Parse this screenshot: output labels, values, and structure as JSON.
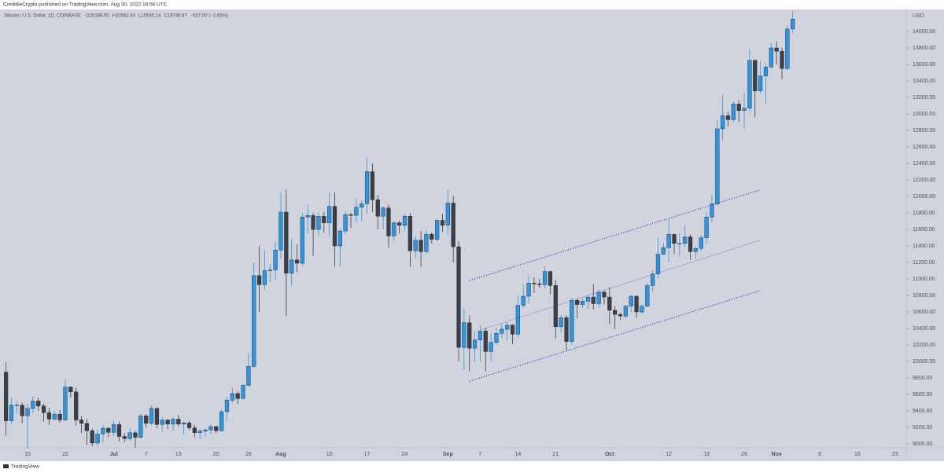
{
  "header": {
    "publisher": "CredibleCrypto published on TradingView.com, Aug 30, 2022 18:56 UTC"
  },
  "footer": {
    "brand": "TradingView"
  },
  "chart_data": {
    "type": "candlestick",
    "symbol": "Bitcoin / U.S. Dollar, 1D, COINBASE",
    "ohlc_legend": [
      "O20286.95",
      "H20582.64",
      "L19540.14",
      "C19749.97",
      "−537.00 (−2.65%)"
    ],
    "y_unit": "USD",
    "up_color": "#2f95e0",
    "down_color": "#3b3f4a",
    "line_color": "#2a4fc9",
    "grid": false,
    "ylim": [
      8952,
      14267
    ],
    "yticks": [
      {
        "value": 9000,
        "label": "9000.00"
      },
      {
        "value": 9200,
        "label": "9200.00"
      },
      {
        "value": 9400,
        "label": "9400.00"
      },
      {
        "value": 9600,
        "label": "9600.00"
      },
      {
        "value": 9800,
        "label": "9800.00"
      },
      {
        "value": 10000,
        "label": "10000.00"
      },
      {
        "value": 10200,
        "label": "10200.00"
      },
      {
        "value": 10400,
        "label": "10400.00"
      },
      {
        "value": 10600,
        "label": "10600.00"
      },
      {
        "value": 10800,
        "label": "10800.00"
      },
      {
        "value": 11000,
        "label": "11000.00"
      },
      {
        "value": 11200,
        "label": "11200.00"
      },
      {
        "value": 11400,
        "label": "11400.00"
      },
      {
        "value": 11600,
        "label": "11600.00"
      },
      {
        "value": 11800,
        "label": "11800.00"
      },
      {
        "value": 12000,
        "label": "12000.00"
      },
      {
        "value": 12200,
        "label": "12200.00"
      },
      {
        "value": 12400,
        "label": "12400.00"
      },
      {
        "value": 12600,
        "label": "12600.00"
      },
      {
        "value": 12800,
        "label": "12800.00"
      },
      {
        "value": 13000,
        "label": "13000.00"
      },
      {
        "value": 13200,
        "label": "13200.00"
      },
      {
        "value": 13400,
        "label": "13400.00"
      },
      {
        "value": 13600,
        "label": "13600.00"
      },
      {
        "value": 13800,
        "label": "13800.00"
      },
      {
        "value": 14000,
        "label": "14000.00"
      }
    ],
    "categories": [
      null,
      null,
      null,
      null,
      "15",
      null,
      null,
      null,
      null,
      null,
      null,
      "22",
      null,
      null,
      null,
      null,
      null,
      null,
      null,
      null,
      "Jul",
      null,
      null,
      null,
      null,
      null,
      "7",
      null,
      null,
      null,
      null,
      null,
      "13",
      null,
      null,
      null,
      null,
      null,
      null,
      "20",
      null,
      null,
      null,
      null,
      null,
      "26",
      null,
      null,
      null,
      null,
      null,
      "Aug",
      null,
      null,
      null,
      null,
      null,
      null,
      null,
      null,
      "10",
      null,
      null,
      null,
      null,
      null,
      null,
      "17",
      null,
      null,
      null,
      null,
      null,
      null,
      "24",
      null,
      null,
      null,
      null,
      null,
      null,
      null,
      "Sep",
      null,
      null,
      null,
      null,
      null,
      "7",
      null,
      null,
      null,
      null,
      null,
      null,
      "14",
      null,
      null,
      null,
      null,
      null,
      null,
      "21",
      null,
      null,
      null,
      null,
      null,
      null,
      null,
      null,
      null,
      "Oct",
      null,
      null,
      null,
      null,
      null,
      null,
      null,
      null,
      null,
      null,
      "12",
      null,
      null,
      null,
      null,
      null,
      null,
      "19",
      null,
      null,
      null,
      null,
      null,
      null,
      "26",
      null,
      null,
      null,
      null,
      null,
      "Nov",
      null,
      null,
      null,
      null,
      null,
      null,
      null,
      "9",
      null,
      null,
      null,
      null,
      null,
      null,
      "16",
      null,
      null,
      null,
      null,
      null,
      null,
      "23",
      null,
      null
    ],
    "open": [
      9870,
      9280,
      9470,
      9470,
      9340,
      9430,
      9520,
      9460,
      9380,
      9300,
      9360,
      9290,
      9690,
      9630,
      9290,
      9250,
      9160,
      9010,
      9120,
      9190,
      9140,
      9235,
      9090,
      9065,
      9135,
      9080,
      9340,
      9250,
      9430,
      9235,
      9290,
      9240,
      9300,
      9240,
      9255,
      9195,
      9135,
      9155,
      9170,
      9210,
      9160,
      9390,
      9530,
      9610,
      9550,
      9710,
      9940,
      11040,
      10930,
      11100,
      11110,
      11350,
      11810,
      11070,
      11230,
      11190,
      11750,
      11770,
      11600,
      11760,
      11680,
      11880,
      11400,
      11580,
      11780,
      11770,
      11870,
      11910,
      12300,
      11960,
      11760,
      11860,
      11520,
      11680,
      11650,
      11760,
      11340,
      11470,
      11330,
      11540,
      11480,
      11710,
      11650,
      11920,
      11390,
      10170,
      10470,
      10160,
      10260,
      10370,
      10120,
      10230,
      10340,
      10390,
      10440,
      10330,
      10680,
      10790,
      10950,
      10940,
      10930,
      11090,
      10920,
      10420,
      10530,
      10240,
      10740,
      10690,
      10730,
      10780,
      10700,
      10840,
      10780,
      10620,
      10570,
      10550,
      10670,
      10790,
      10600,
      10670,
      10920,
      11060,
      11300,
      11380,
      11540,
      11430,
      11430,
      11510,
      11330,
      11370,
      11500,
      11750,
      11910,
      12820,
      12980,
      12930,
      13120,
      13040,
      13070,
      13650,
      13280,
      13460,
      13570,
      13800,
      13760,
      13550,
      14030,
      null,
      null,
      null,
      null,
      null,
      null,
      null,
      null,
      null,
      null,
      null,
      null,
      null,
      null,
      null,
      null,
      null,
      null,
      null,
      null,
      null
    ],
    "high": [
      9990,
      9560,
      9520,
      9500,
      9490,
      9580,
      9560,
      9490,
      9440,
      9400,
      9410,
      9780,
      9700,
      9680,
      9340,
      9300,
      9190,
      9180,
      9230,
      9200,
      9290,
      9270,
      9130,
      9190,
      9160,
      9370,
      9360,
      9470,
      9440,
      9320,
      9300,
      9330,
      9350,
      9280,
      9280,
      9230,
      9190,
      9190,
      9240,
      9220,
      9420,
      9570,
      9680,
      9640,
      9730,
      10100,
      11200,
      11400,
      11350,
      11180,
      11450,
      12050,
      12080,
      11480,
      11420,
      11800,
      11900,
      11800,
      11800,
      11810,
      12050,
      12050,
      11620,
      11820,
      11800,
      11980,
      11950,
      12470,
      12400,
      12020,
      11880,
      11900,
      11700,
      11710,
      11790,
      11800,
      11520,
      11580,
      11590,
      11560,
      11720,
      11790,
      12080,
      12010,
      11460,
      10640,
      10560,
      10360,
      10440,
      10410,
      10340,
      10410,
      10460,
      10480,
      10450,
      10800,
      10930,
      11040,
      11020,
      11000,
      11150,
      11100,
      10990,
      10560,
      10560,
      10770,
      10760,
      10760,
      10800,
      10940,
      10870,
      10860,
      10900,
      10670,
      10590,
      10690,
      10800,
      10800,
      10690,
      10950,
      11100,
      11500,
      11440,
      11720,
      11550,
      11550,
      11650,
      11540,
      11390,
      11530,
      11800,
      12020,
      12930,
      13230,
      13030,
      13150,
      13170,
      13250,
      13790,
      13660,
      13640,
      13620,
      13860,
      13880,
      13800,
      14070,
      14250,
      null,
      null,
      null,
      null,
      null,
      null,
      null,
      null,
      null,
      null,
      null,
      null,
      null,
      null,
      null,
      null,
      null,
      null,
      null,
      null,
      null
    ],
    "low": [
      9100,
      9240,
      9360,
      9250,
      8950,
      9380,
      9400,
      9270,
      9230,
      9280,
      9260,
      9280,
      9560,
      9220,
      9130,
      8990,
      8970,
      8980,
      9020,
      9080,
      9090,
      9030,
      9020,
      9040,
      8940,
      9070,
      9200,
      9230,
      9190,
      9150,
      9180,
      9160,
      9210,
      9110,
      9170,
      9080,
      9060,
      9090,
      9120,
      9130,
      9150,
      9280,
      9500,
      9480,
      9540,
      9690,
      9920,
      10600,
      10870,
      10960,
      10990,
      11240,
      10550,
      10920,
      11080,
      11160,
      11550,
      11280,
      11530,
      11560,
      11520,
      11150,
      11150,
      11540,
      11620,
      11690,
      11700,
      11790,
      11810,
      11600,
      11600,
      11380,
      11460,
      11550,
      11580,
      11140,
      11250,
      11140,
      11300,
      11430,
      11460,
      11570,
      11530,
      11200,
      10000,
      9900,
      9880,
      10000,
      10000,
      9880,
      10000,
      10200,
      10280,
      10250,
      10210,
      10290,
      10650,
      10700,
      10830,
      10890,
      10890,
      10810,
      10280,
      10350,
      10130,
      10200,
      10520,
      10650,
      10640,
      10630,
      10650,
      10690,
      10450,
      10390,
      10500,
      10520,
      10600,
      10530,
      10580,
      10660,
      10850,
      11010,
      11290,
      11200,
      11300,
      11270,
      11380,
      11230,
      11240,
      11330,
      11420,
      11690,
      11880,
      12680,
      12850,
      12900,
      12900,
      12820,
      13020,
      12960,
      13250,
      13130,
      13550,
      13600,
      13420,
      13530,
      13980,
      null,
      null,
      null,
      null,
      null,
      null,
      null,
      null,
      null,
      null,
      null,
      null,
      null,
      null,
      null,
      null,
      null,
      null,
      null,
      null,
      null
    ],
    "close": [
      9280,
      9470,
      9470,
      9340,
      9430,
      9520,
      9460,
      9380,
      9300,
      9360,
      9290,
      9690,
      9630,
      9290,
      9250,
      9160,
      9010,
      9120,
      9190,
      9140,
      9235,
      9090,
      9065,
      9135,
      9080,
      9340,
      9250,
      9430,
      9235,
      9290,
      9240,
      9300,
      9240,
      9255,
      9195,
      9135,
      9155,
      9170,
      9210,
      9160,
      9390,
      9530,
      9610,
      9550,
      9710,
      9940,
      11040,
      10930,
      11100,
      11110,
      11350,
      11810,
      11070,
      11230,
      11190,
      11750,
      11770,
      11600,
      11760,
      11680,
      11880,
      11400,
      11580,
      11780,
      11770,
      11870,
      11910,
      12300,
      11960,
      11760,
      11860,
      11520,
      11680,
      11650,
      11760,
      11340,
      11470,
      11330,
      11540,
      11480,
      11710,
      11650,
      11920,
      11390,
      10170,
      10470,
      10160,
      10260,
      10370,
      10120,
      10230,
      10340,
      10390,
      10440,
      10330,
      10680,
      10790,
      10950,
      10940,
      10930,
      11090,
      10920,
      10420,
      10530,
      10240,
      10740,
      10690,
      10730,
      10780,
      10700,
      10840,
      10780,
      10620,
      10570,
      10550,
      10670,
      10790,
      10600,
      10670,
      10920,
      11060,
      11300,
      11380,
      11540,
      11430,
      11430,
      11510,
      11330,
      11370,
      11500,
      11750,
      11910,
      12820,
      12980,
      12930,
      13120,
      13040,
      13070,
      13650,
      13280,
      13460,
      13570,
      13800,
      13760,
      13550,
      14030,
      14150,
      null,
      null,
      null,
      null,
      null,
      null,
      null,
      null,
      null,
      null,
      null,
      null,
      null,
      null,
      null,
      null,
      null,
      null,
      null,
      null,
      null
    ],
    "trend_lines": [
      {
        "style": "dotted",
        "start": [
          86,
          10980
        ],
        "end": [
          140,
          12080
        ]
      },
      {
        "style": "solid",
        "start": [
          88,
          10380
        ],
        "end": [
          140,
          11470
        ]
      },
      {
        "style": "dotted",
        "start": [
          86,
          9760
        ],
        "end": [
          140,
          10860
        ]
      }
    ]
  }
}
